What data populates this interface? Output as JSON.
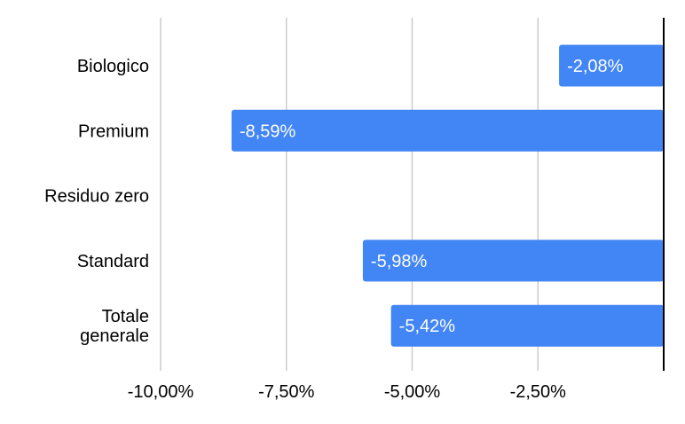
{
  "chart_data": {
    "type": "bar",
    "orientation": "horizontal",
    "title": "",
    "xlabel": "",
    "ylabel": "",
    "categories": [
      "Biologico",
      "Premium",
      "Residuo zero",
      "Standard",
      "Totale generale"
    ],
    "category_lines": [
      [
        "Biologico"
      ],
      [
        "Premium"
      ],
      [
        "Residuo zero"
      ],
      [
        "Standard"
      ],
      [
        "Totale",
        "generale"
      ]
    ],
    "values": [
      -2.08,
      -8.59,
      null,
      -5.98,
      -5.42
    ],
    "data_labels": [
      "-2,08%",
      "-8,59%",
      "",
      "-5,98%",
      "-5,42%"
    ],
    "xlim": [
      -10.0,
      0.0
    ],
    "x_ticks": [
      -10.0,
      -7.5,
      -5.0,
      -2.5
    ],
    "x_tick_labels": [
      "-10,00%",
      "-7,50%",
      "-5,00%",
      "-2,50%"
    ],
    "grid": "vertical",
    "legend": "none",
    "colors": {
      "bar": "#4285f4",
      "grid": "#cccccc",
      "axis": "#000000",
      "label_inside": "#ffffff",
      "text": "#000000"
    }
  }
}
